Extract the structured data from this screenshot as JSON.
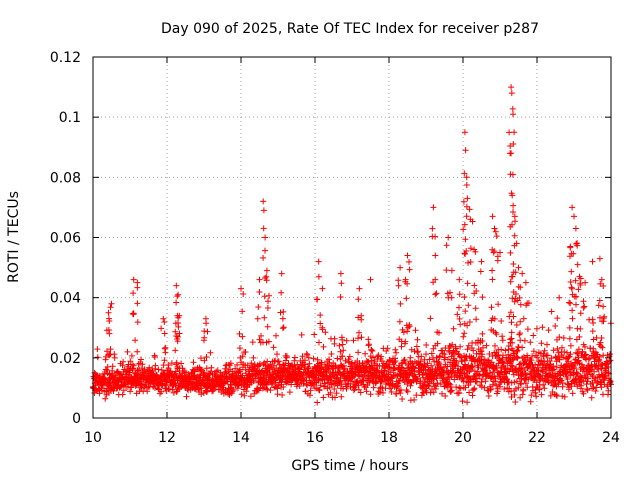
{
  "chart_data": {
    "type": "scatter",
    "title": "Day 090 of 2025, Rate Of TEC Index for receiver p287",
    "xlabel": "GPS time / hours",
    "ylabel": "ROTI / TECUs",
    "xlim": [
      10,
      24
    ],
    "ylim": [
      0,
      0.12
    ],
    "x_ticks": [
      10,
      12,
      14,
      16,
      18,
      20,
      22,
      24
    ],
    "x_tick_labels": [
      "10",
      "12",
      "14",
      "16",
      "18",
      "20",
      "22",
      "24"
    ],
    "y_ticks": [
      0,
      0.02,
      0.04,
      0.06,
      0.08,
      0.1,
      0.12
    ],
    "y_tick_labels": [
      "0",
      "0.02",
      "0.04",
      "0.06",
      "0.08",
      "0.1",
      "0.12"
    ],
    "grid": true,
    "marker": "plus",
    "color": "#ff0000",
    "series": [
      {
        "name": "ROTI",
        "baseline": [
          [
            10.0,
            0.011,
            0.004
          ],
          [
            11.0,
            0.013,
            0.004
          ],
          [
            12.0,
            0.013,
            0.004
          ],
          [
            13.0,
            0.012,
            0.004
          ],
          [
            14.0,
            0.013,
            0.005
          ],
          [
            15.0,
            0.014,
            0.005
          ],
          [
            16.0,
            0.014,
            0.006
          ],
          [
            17.0,
            0.014,
            0.006
          ],
          [
            18.0,
            0.014,
            0.006
          ],
          [
            19.0,
            0.015,
            0.007
          ],
          [
            20.0,
            0.016,
            0.008
          ],
          [
            21.0,
            0.016,
            0.008
          ],
          [
            22.0,
            0.015,
            0.007
          ],
          [
            23.0,
            0.016,
            0.008
          ],
          [
            24.0,
            0.015,
            0.007
          ]
        ],
        "spikes": [
          [
            10.5,
            0.038
          ],
          [
            10.42,
            0.035
          ],
          [
            11.1,
            0.046
          ],
          [
            11.2,
            0.045
          ],
          [
            11.9,
            0.033
          ],
          [
            12.25,
            0.044
          ],
          [
            12.3,
            0.041
          ],
          [
            12.28,
            0.034
          ],
          [
            13.05,
            0.033
          ],
          [
            14.0,
            0.043
          ],
          [
            14.5,
            0.046
          ],
          [
            14.6,
            0.072
          ],
          [
            14.62,
            0.069
          ],
          [
            14.65,
            0.06
          ],
          [
            14.7,
            0.049
          ],
          [
            15.1,
            0.048
          ],
          [
            16.1,
            0.052
          ],
          [
            16.2,
            0.043
          ],
          [
            16.7,
            0.048
          ],
          [
            17.2,
            0.043
          ],
          [
            17.5,
            0.046
          ],
          [
            18.3,
            0.05
          ],
          [
            18.45,
            0.046
          ],
          [
            18.5,
            0.054
          ],
          [
            19.2,
            0.07
          ],
          [
            19.25,
            0.054
          ],
          [
            19.6,
            0.06
          ],
          [
            19.7,
            0.049
          ],
          [
            19.9,
            0.046
          ],
          [
            20.05,
            0.095
          ],
          [
            20.07,
            0.089
          ],
          [
            20.1,
            0.08
          ],
          [
            20.12,
            0.073
          ],
          [
            20.2,
            0.066
          ],
          [
            20.3,
            0.056
          ],
          [
            20.5,
            0.052
          ],
          [
            20.8,
            0.067
          ],
          [
            20.85,
            0.063
          ],
          [
            21.0,
            0.055
          ],
          [
            21.3,
            0.11
          ],
          [
            21.32,
            0.108
          ],
          [
            21.35,
            0.101
          ],
          [
            21.38,
            0.095
          ],
          [
            21.3,
            0.088
          ],
          [
            21.28,
            0.081
          ],
          [
            21.33,
            0.074
          ],
          [
            21.4,
            0.067
          ],
          [
            21.45,
            0.058
          ],
          [
            21.5,
            0.05
          ],
          [
            21.6,
            0.048
          ],
          [
            21.7,
            0.045
          ],
          [
            22.6,
            0.04
          ],
          [
            22.95,
            0.07
          ],
          [
            23.0,
            0.067
          ],
          [
            23.05,
            0.063
          ],
          [
            22.9,
            0.057
          ],
          [
            23.1,
            0.051
          ],
          [
            23.15,
            0.047
          ],
          [
            23.3,
            0.045
          ],
          [
            23.5,
            0.052
          ],
          [
            23.7,
            0.053
          ],
          [
            23.75,
            0.046
          ]
        ]
      }
    ]
  }
}
